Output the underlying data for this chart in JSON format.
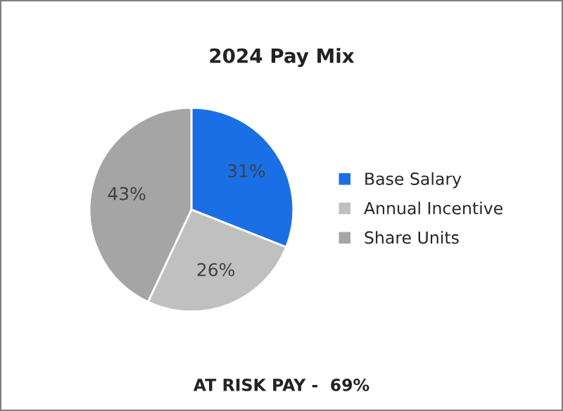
{
  "chart_data": {
    "type": "pie",
    "title": "2024 Pay Mix",
    "categories": [
      "Base Salary",
      "Annual Incentive",
      "Share Units"
    ],
    "values": [
      31,
      26,
      43
    ],
    "colors": [
      "#1a6fe6",
      "#c0c0c0",
      "#a5a5a5"
    ],
    "value_labels": [
      "31%",
      "26%",
      "43%"
    ],
    "legend": "right",
    "annotations": [
      "AT RISK PAY -  69%"
    ]
  }
}
